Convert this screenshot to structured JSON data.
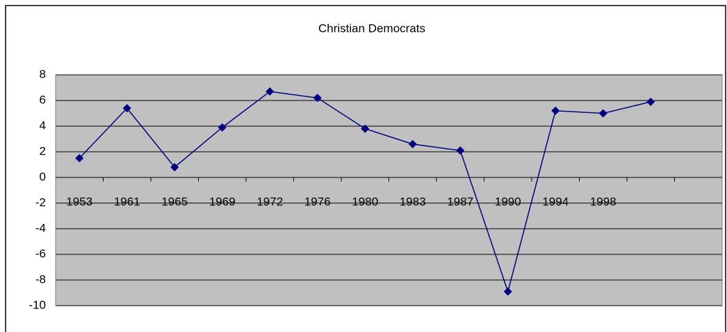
{
  "chart_data": {
    "type": "line",
    "title": "Christian Democrats",
    "categories": [
      "1953",
      "1961",
      "1965",
      "1969",
      "1972",
      "1976",
      "1980",
      "1983",
      "1987",
      "1990",
      "1994",
      "1998",
      null,
      null
    ],
    "series": [
      {
        "name": "Christian Democrats",
        "color": "#000080",
        "values": [
          1.5,
          5.4,
          0.8,
          3.9,
          6.7,
          6.2,
          3.8,
          2.6,
          2.1,
          -8.9,
          5.2,
          5.0,
          5.9,
          null
        ]
      }
    ],
    "ylim": [
      -10,
      8
    ],
    "yticks": [
      -10,
      -8,
      -6,
      -4,
      -2,
      0,
      2,
      4,
      6,
      8
    ],
    "grid": true
  }
}
